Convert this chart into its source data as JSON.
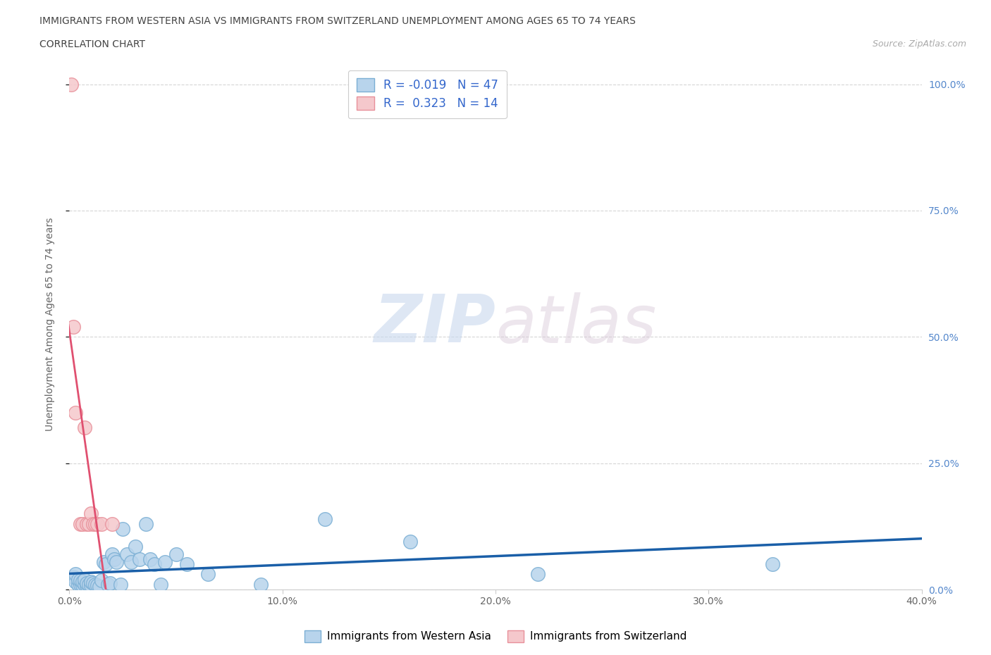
{
  "title_line1": "IMMIGRANTS FROM WESTERN ASIA VS IMMIGRANTS FROM SWITZERLAND UNEMPLOYMENT AMONG AGES 65 TO 74 YEARS",
  "title_line2": "CORRELATION CHART",
  "source_text": "Source: ZipAtlas.com",
  "ylabel": "Unemployment Among Ages 65 to 74 years",
  "xlim": [
    0.0,
    0.4
  ],
  "ylim": [
    0.0,
    1.05
  ],
  "xtick_labels": [
    "0.0%",
    "10.0%",
    "20.0%",
    "30.0%",
    "40.0%"
  ],
  "xtick_vals": [
    0.0,
    0.1,
    0.2,
    0.3,
    0.4
  ],
  "ytick_labels": [
    "0.0%",
    "25.0%",
    "50.0%",
    "75.0%",
    "100.0%"
  ],
  "ytick_vals": [
    0.0,
    0.25,
    0.5,
    0.75,
    1.0
  ],
  "blue_color": "#7bafd4",
  "blue_fill": "#b8d4ec",
  "pink_color": "#e8909a",
  "pink_fill": "#f5c8cc",
  "trend_blue_color": "#1a5fa8",
  "trend_pink_color": "#e05070",
  "legend_R_blue": "R = -0.019",
  "legend_N_blue": "N = 47",
  "legend_R_pink": "R =  0.323",
  "legend_N_pink": "N = 14",
  "legend_label_blue": "Immigrants from Western Asia",
  "legend_label_pink": "Immigrants from Switzerland",
  "watermark_zip": "ZIP",
  "watermark_atlas": "atlas",
  "background_color": "#ffffff",
  "grid_color": "#cccccc",
  "blue_x": [
    0.002,
    0.003,
    0.003,
    0.004,
    0.004,
    0.005,
    0.005,
    0.006,
    0.006,
    0.007,
    0.007,
    0.008,
    0.008,
    0.009,
    0.01,
    0.01,
    0.011,
    0.012,
    0.013,
    0.014,
    0.015,
    0.016,
    0.017,
    0.018,
    0.019,
    0.02,
    0.021,
    0.022,
    0.024,
    0.025,
    0.027,
    0.029,
    0.031,
    0.033,
    0.036,
    0.038,
    0.04,
    0.043,
    0.045,
    0.05,
    0.055,
    0.065,
    0.09,
    0.12,
    0.16,
    0.22,
    0.33
  ],
  "blue_y": [
    0.025,
    0.015,
    0.03,
    0.01,
    0.02,
    0.01,
    0.018,
    0.008,
    0.015,
    0.01,
    0.02,
    0.008,
    0.012,
    0.01,
    0.008,
    0.015,
    0.012,
    0.01,
    0.008,
    0.005,
    0.018,
    0.055,
    0.05,
    0.01,
    0.012,
    0.07,
    0.06,
    0.055,
    0.01,
    0.12,
    0.07,
    0.055,
    0.085,
    0.06,
    0.13,
    0.06,
    0.05,
    0.01,
    0.055,
    0.07,
    0.05,
    0.03,
    0.01,
    0.14,
    0.095,
    0.03,
    0.05
  ],
  "pink_x": [
    0.001,
    0.002,
    0.003,
    0.005,
    0.006,
    0.007,
    0.008,
    0.009,
    0.01,
    0.011,
    0.012,
    0.013,
    0.015,
    0.02
  ],
  "pink_y": [
    1.0,
    0.52,
    0.35,
    0.13,
    0.13,
    0.32,
    0.13,
    0.13,
    0.15,
    0.13,
    0.13,
    0.13,
    0.13,
    0.13
  ]
}
